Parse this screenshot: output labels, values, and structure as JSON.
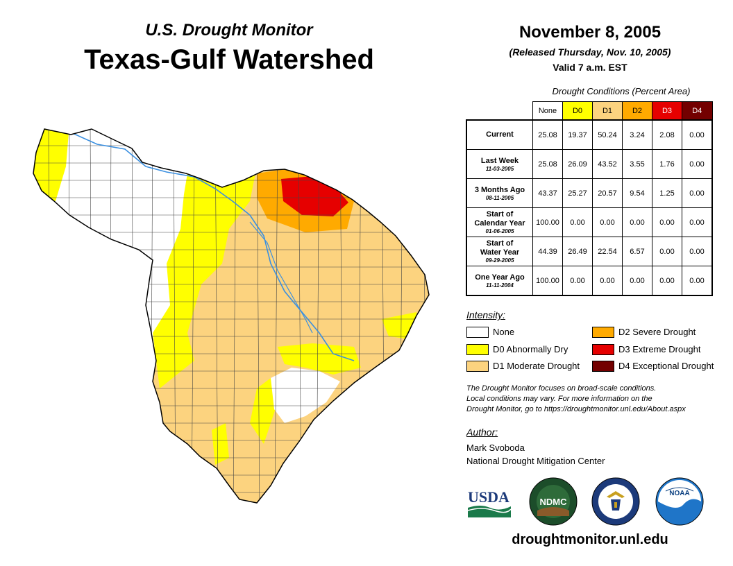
{
  "header": {
    "subtitle": "U.S. Drought Monitor",
    "title": "Texas-Gulf Watershed",
    "date": "November 8, 2005",
    "released": "(Released Thursday, Nov. 10, 2005)",
    "valid": "Valid 7 a.m. EST"
  },
  "table": {
    "caption": "Drought Conditions (Percent Area)",
    "columns": [
      {
        "label": "None",
        "color": "#ffffff",
        "text_color": "#000000"
      },
      {
        "label": "D0",
        "color": "#ffff00",
        "text_color": "#000000"
      },
      {
        "label": "D1",
        "color": "#fcd37f",
        "text_color": "#000000"
      },
      {
        "label": "D2",
        "color": "#ffaa00",
        "text_color": "#000000"
      },
      {
        "label": "D3",
        "color": "#e60000",
        "text_color": "#ffffff"
      },
      {
        "label": "D4",
        "color": "#730000",
        "text_color": "#ffffff"
      }
    ],
    "rows": [
      {
        "label": "Current",
        "label2": "",
        "date": "",
        "values": [
          "25.08",
          "19.37",
          "50.24",
          "3.24",
          "2.08",
          "0.00"
        ]
      },
      {
        "label": "Last Week",
        "label2": "",
        "date": "11-03-2005",
        "values": [
          "25.08",
          "26.09",
          "43.52",
          "3.55",
          "1.76",
          "0.00"
        ]
      },
      {
        "label": "3 Months Ago",
        "label2": "",
        "date": "08-11-2005",
        "values": [
          "43.37",
          "25.27",
          "20.57",
          "9.54",
          "1.25",
          "0.00"
        ]
      },
      {
        "label": "Start of",
        "label2": "Calendar Year",
        "date": "01-06-2005",
        "values": [
          "100.00",
          "0.00",
          "0.00",
          "0.00",
          "0.00",
          "0.00"
        ]
      },
      {
        "label": "Start of",
        "label2": "Water Year",
        "date": "09-29-2005",
        "values": [
          "44.39",
          "26.49",
          "22.54",
          "6.57",
          "0.00",
          "0.00"
        ]
      },
      {
        "label": "One Year Ago",
        "label2": "",
        "date": "11-11-2004",
        "values": [
          "100.00",
          "0.00",
          "0.00",
          "0.00",
          "0.00",
          "0.00"
        ]
      }
    ]
  },
  "legend": {
    "title": "Intensity:",
    "items": [
      {
        "label": "None",
        "color": "#ffffff"
      },
      {
        "label": "D0 Abnormally Dry",
        "color": "#ffff00"
      },
      {
        "label": "D1 Moderate Drought",
        "color": "#fcd37f"
      },
      {
        "label": "D2 Severe Drought",
        "color": "#ffaa00"
      },
      {
        "label": "D3 Extreme Drought",
        "color": "#e60000"
      },
      {
        "label": "D4 Exceptional Drought",
        "color": "#730000"
      }
    ]
  },
  "note": {
    "line1": "The Drought Monitor focuses on broad-scale conditions.",
    "line2": "Local conditions may vary. For more information on the",
    "line3": "Drought Monitor, go to https://droughtmonitor.unl.edu/About.aspx"
  },
  "author": {
    "title": "Author:",
    "name": "Mark Svoboda",
    "org": "National Drought Mitigation Center"
  },
  "logos": {
    "usda": "USDA",
    "ndmc": "NDMC",
    "noaa": "NOAA"
  },
  "footer": {
    "url": "droughtmonitor.unl.edu"
  },
  "colors": {
    "river": "#3a8fe0",
    "county_line": "#444444"
  }
}
